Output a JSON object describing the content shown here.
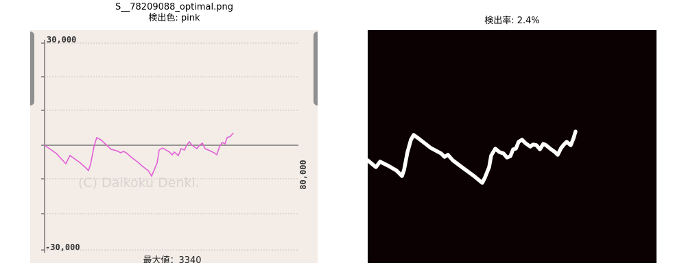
{
  "left_title_line1": "S__78209088_optimal.png",
  "left_title_line2": "検出色: pink",
  "right_title": "検出率: 2.4%",
  "graph": {
    "y_max_label": "30,000",
    "y_min_label": "-30,000",
    "x_max_label": "80,000",
    "watermark": "(C) Daikoku Denki.",
    "max_value_label": "最大値：3340",
    "line_color": "#e25fd6",
    "axis_color": "#777777"
  },
  "mask": {
    "background": "#0c0102",
    "stroke": "#ffffff"
  }
}
